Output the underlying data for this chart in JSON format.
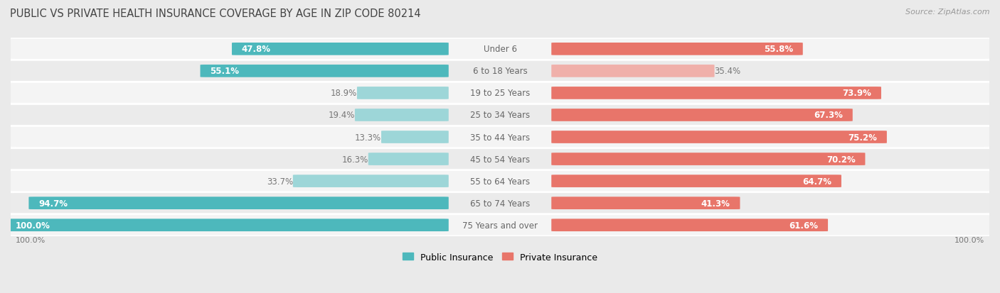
{
  "title": "PUBLIC VS PRIVATE HEALTH INSURANCE COVERAGE BY AGE IN ZIP CODE 80214",
  "source": "Source: ZipAtlas.com",
  "categories": [
    "Under 6",
    "6 to 18 Years",
    "19 to 25 Years",
    "25 to 34 Years",
    "35 to 44 Years",
    "45 to 54 Years",
    "55 to 64 Years",
    "65 to 74 Years",
    "75 Years and over"
  ],
  "public_values": [
    47.8,
    55.1,
    18.9,
    19.4,
    13.3,
    16.3,
    33.7,
    94.7,
    100.0
  ],
  "private_values": [
    55.8,
    35.4,
    73.9,
    67.3,
    75.2,
    70.2,
    64.7,
    41.3,
    61.6
  ],
  "public_color_strong": "#4db8bc",
  "public_color_light": "#9dd6d8",
  "private_color_strong": "#e8756a",
  "private_color_light": "#f0b0aa",
  "background_color": "#eaeaea",
  "row_bg_even": "#f4f4f4",
  "row_bg_odd": "#ebebeb",
  "title_color": "#444444",
  "source_color": "#999999",
  "label_color": "#666666",
  "value_color_inside": "#ffffff",
  "value_color_outside": "#777777",
  "title_fontsize": 10.5,
  "source_fontsize": 8,
  "bar_label_fontsize": 8.5,
  "cat_label_fontsize": 8.5,
  "legend_fontsize": 9,
  "axis_label_fontsize": 8,
  "pub_strong_threshold": 40,
  "priv_strong_threshold": 40
}
